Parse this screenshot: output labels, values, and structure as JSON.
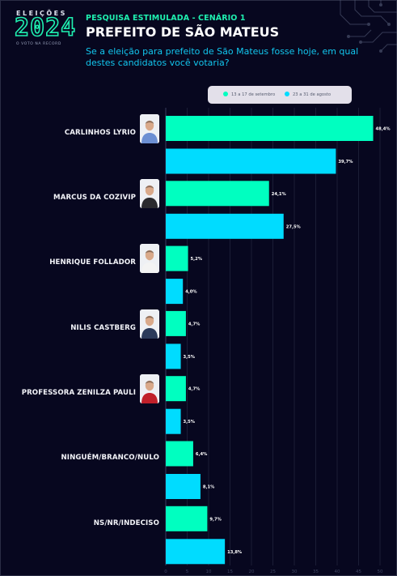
{
  "header": {
    "logo_line1": "ELEIÇÕES",
    "logo_line2": "2024",
    "logo_line3": "O VOTO NA RECORD",
    "kicker": "PESQUISA ESTIMULADA - CENÁRIO 1",
    "title": "PREFEITO DE SÃO MATEUS",
    "question": "Se a eleição para prefeito de São Mateus fosse hoje, em qual destes candidatos você votaria?"
  },
  "colors": {
    "background": "#07071f",
    "series_sep": "#00ffc0",
    "series_aug": "#00dcff",
    "accent_title": "#1ff0b0",
    "question_text": "#12c6ee"
  },
  "candidates": [
    {
      "name": "CARLINHOS LYRIO",
      "photo": "candidate-photo",
      "shirt": "#6c8fd3"
    },
    {
      "name": "MARCUS DA COZIVIP",
      "photo": "candidate-photo",
      "shirt": "#2a2a2e"
    },
    {
      "name": "HENRIQUE FOLLADOR",
      "photo": "candidate-photo",
      "shirt": "#f3f3f3"
    },
    {
      "name": "NILIS CASTBERG",
      "photo": "candidate-photo",
      "shirt": "#2b3a5a"
    },
    {
      "name": "PROFESSORA ZENILZA PAULI",
      "photo": "candidate-photo",
      "shirt": "#c0202a"
    },
    {
      "name": "NINGUÉM/BRANCO/NULO",
      "photo": null
    },
    {
      "name": "NS/NR/INDECISO",
      "photo": null
    }
  ],
  "chart_data": {
    "type": "bar",
    "orientation": "horizontal",
    "categories": [
      "CARLINHOS LYRIO",
      "MARCUS DA COZIVIP",
      "HENRIQUE FOLLADOR",
      "NILIS CASTBERG",
      "PROFESSORA ZENILZA PAULI",
      "NINGUÉM/BRANCO/NULO",
      "NS/NR/INDECISO"
    ],
    "series": [
      {
        "name": "13 a 17 de setembro",
        "color": "#00ffc0",
        "values": [
          48.4,
          24.1,
          5.2,
          4.7,
          4.7,
          6.4,
          9.7
        ],
        "labels": [
          "48,4%",
          "24,1%",
          "5,2%",
          "4,7%",
          "4,7%",
          "6,4%",
          "9,7%"
        ]
      },
      {
        "name": "23 a 31 de agosto",
        "color": "#00dcff",
        "values": [
          39.7,
          27.5,
          4.0,
          3.5,
          3.5,
          8.1,
          13.8
        ],
        "labels": [
          "39,7%",
          "27,5%",
          "4,0%",
          "3,5%",
          "3,5%",
          "8,1%",
          "13,8%"
        ]
      }
    ],
    "xlim": [
      0,
      50
    ],
    "xticks": [
      0,
      5,
      10,
      15,
      20,
      25,
      30,
      35,
      40,
      45,
      50
    ],
    "grid": true,
    "legend_position": "top"
  }
}
